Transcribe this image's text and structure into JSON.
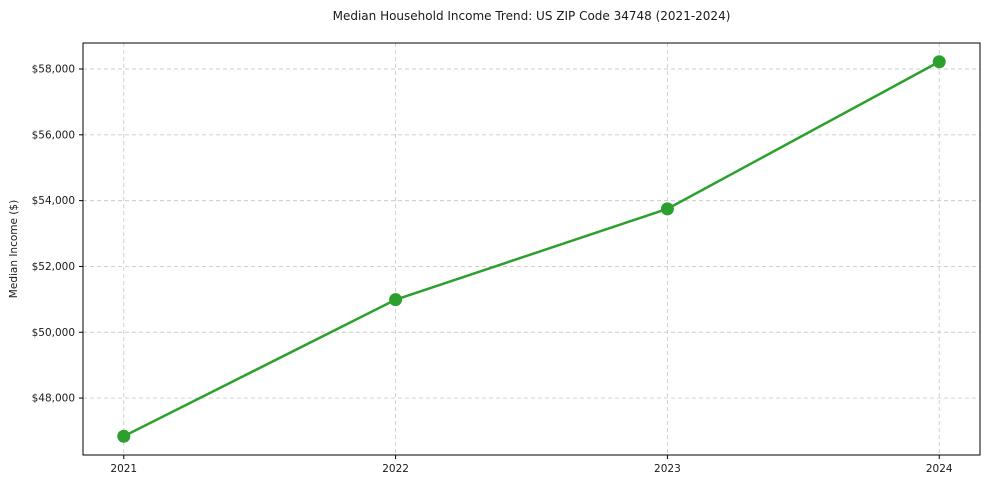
{
  "chart_data": {
    "type": "line",
    "title": "Median Household Income Trend: US ZIP Code 34748 (2021-2024)",
    "xlabel": "",
    "ylabel": "Median Income ($)",
    "categories": [
      "2021",
      "2022",
      "2023",
      "2024"
    ],
    "series": [
      {
        "name": "Median Household Income",
        "values": [
          46840,
          50990,
          53750,
          58220
        ]
      }
    ],
    "y_ticks": {
      "values": [
        48000,
        50000,
        52000,
        54000,
        56000,
        58000
      ],
      "labels": [
        "$48,000",
        "$50,000",
        "$52,000",
        "$54,000",
        "$56,000",
        "$58,000"
      ]
    },
    "ylim": [
      46270,
      58790
    ],
    "grid": true,
    "legend": "none",
    "colors": {
      "line": "#2ca02c",
      "marker": "#2ca02c",
      "grid": "#cccccc",
      "spine": "#000000",
      "text": "#1a1a1a",
      "background": "#ffffff"
    }
  }
}
